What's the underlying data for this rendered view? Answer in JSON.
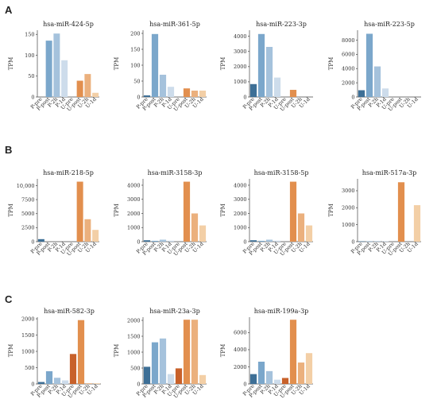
{
  "panels": [
    {
      "letter": "A"
    },
    {
      "letter": "B"
    },
    {
      "letter": "C"
    }
  ],
  "colors": {
    "P-pre": "#3d6f96",
    "P-post": "#7ba7cb",
    "P-2h": "#a5c2dc",
    "P-1d": "#cddceb",
    "U-pre": "#c8612a",
    "U-post": "#e28f4e",
    "U-2h": "#ebb07d",
    "U-1d": "#f3cfa6"
  },
  "chart_data": [
    {
      "type": "bar",
      "title": "hsa-miR-424-5p",
      "ylabel": "TPM",
      "categories": [
        "P-pre",
        "P-post",
        "P-2h",
        "P-1d",
        "U-pre",
        "U-post",
        "U-2h",
        "U-1d"
      ],
      "values": [
        0,
        135,
        152,
        88,
        0,
        39,
        55,
        10
      ],
      "ylim": [
        0,
        160
      ],
      "yticks": [
        0,
        50,
        100,
        150
      ],
      "ytick_labels": [
        "0",
        "50",
        "100",
        "150"
      ]
    },
    {
      "type": "bar",
      "title": "hsa-miR-361-5p",
      "ylabel": "TPM",
      "categories": [
        "P-pre",
        "P-post",
        "P-2h",
        "P-1d",
        "U-pre",
        "U-post",
        "U-2h",
        "U-1d"
      ],
      "values": [
        5,
        198,
        70,
        32,
        0,
        27,
        20,
        20
      ],
      "ylim": [
        0,
        210
      ],
      "yticks": [
        0,
        50,
        100,
        150,
        200
      ],
      "ytick_labels": [
        "0",
        "50",
        "100",
        "150",
        "200"
      ]
    },
    {
      "type": "bar",
      "title": "hsa-miR-223-3p",
      "ylabel": "TPM",
      "categories": [
        "P-pre",
        "P-post",
        "P-2h",
        "P-1d",
        "U-pre",
        "U-post",
        "U-2h",
        "U-1d"
      ],
      "values": [
        850,
        4150,
        3300,
        1280,
        0,
        470,
        0,
        0
      ],
      "ylim": [
        0,
        4400
      ],
      "yticks": [
        0,
        1000,
        2000,
        3000,
        4000
      ],
      "ytick_labels": [
        "0",
        "1000",
        "2000",
        "3000",
        "4000"
      ]
    },
    {
      "type": "bar",
      "title": "hsa-miR-223-5p",
      "ylabel": "TPM",
      "categories": [
        "P-pre",
        "P-post",
        "P-2h",
        "P-1d",
        "U-pre",
        "U-post",
        "U-2h",
        "U-1d"
      ],
      "values": [
        950,
        8900,
        4300,
        1200,
        0,
        0,
        0,
        0
      ],
      "ylim": [
        0,
        9400
      ],
      "yticks": [
        0,
        2000,
        4000,
        6000,
        8000
      ],
      "ytick_labels": [
        "0",
        "2000",
        "4000",
        "6000",
        "8000"
      ]
    },
    {
      "type": "bar",
      "title": "hsa-miR-218-5p",
      "ylabel": "TPM",
      "categories": [
        "P-pre",
        "P-post",
        "P-2h",
        "P-1d",
        "U-pre",
        "U-post",
        "U-2h",
        "U-1d"
      ],
      "values": [
        450,
        0,
        0,
        0,
        0,
        10700,
        4000,
        2100
      ],
      "ylim": [
        0,
        11200
      ],
      "yticks": [
        0,
        2500,
        5000,
        7500,
        10000
      ],
      "ytick_labels": [
        "0",
        "2500",
        "5000",
        "7500",
        "10,000"
      ]
    },
    {
      "type": "bar",
      "title": "hsa-miR-3158-3p",
      "ylabel": "TPM",
      "categories": [
        "P-pre",
        "P-post",
        "P-2h",
        "P-1d",
        "U-pre",
        "U-post",
        "U-2h",
        "U-1d"
      ],
      "values": [
        100,
        60,
        140,
        70,
        0,
        4250,
        2000,
        1150
      ],
      "ylim": [
        0,
        4450
      ],
      "yticks": [
        0,
        1000,
        2000,
        3000,
        4000
      ],
      "ytick_labels": [
        "0",
        "1000",
        "2000",
        "3000",
        "4000"
      ]
    },
    {
      "type": "bar",
      "title": "hsa-miR-3158-5p",
      "ylabel": "TPM",
      "categories": [
        "P-pre",
        "P-post",
        "P-2h",
        "P-1d",
        "U-pre",
        "U-post",
        "U-2h",
        "U-1d"
      ],
      "values": [
        100,
        60,
        140,
        70,
        0,
        4250,
        2000,
        1150
      ],
      "ylim": [
        0,
        4450
      ],
      "yticks": [
        0,
        1000,
        2000,
        3000,
        4000
      ],
      "ytick_labels": [
        "0",
        "1000",
        "2000",
        "3000",
        "4000"
      ]
    },
    {
      "type": "bar",
      "title": "hsa-miR-517a-3p",
      "ylabel": "TPM",
      "categories": [
        "P-pre",
        "P-post",
        "P-2h",
        "P-1d",
        "U-pre",
        "U-post",
        "U-2h",
        "U-1d"
      ],
      "values": [
        20,
        20,
        30,
        30,
        0,
        3500,
        0,
        2150
      ],
      "ylim": [
        0,
        3700
      ],
      "yticks": [
        0,
        1000,
        2000,
        3000
      ],
      "ytick_labels": [
        "0",
        "1000",
        "2000",
        "3000"
      ]
    },
    {
      "type": "bar",
      "title": "hsa-miR-582-3p",
      "ylabel": "TPM",
      "categories": [
        "P-pre",
        "P-post",
        "P-2h",
        "P-1d",
        "U-pre",
        "U-post",
        "U-2h",
        "U-1d"
      ],
      "values": [
        60,
        390,
        190,
        110,
        920,
        1960,
        20,
        20
      ],
      "ylim": [
        0,
        2050
      ],
      "yticks": [
        0,
        500,
        1000,
        1500,
        2000
      ],
      "ytick_labels": [
        "0",
        "500",
        "1000",
        "1500",
        "2000"
      ]
    },
    {
      "type": "bar",
      "title": "hsa-miR-23a-3p",
      "ylabel": "TPM",
      "categories": [
        "P-pre",
        "P-post",
        "P-2h",
        "P-1d",
        "U-pre",
        "U-post",
        "U-2h",
        "U-1d"
      ],
      "values": [
        540,
        1310,
        1430,
        310,
        490,
        2020,
        2020,
        280
      ],
      "ylim": [
        0,
        2100
      ],
      "yticks": [
        0,
        500,
        1000,
        1500,
        2000
      ],
      "ytick_labels": [
        "0",
        "500",
        "1000",
        "1500",
        "2000"
      ]
    },
    {
      "type": "bar",
      "title": "hsa-miR-199a-3p",
      "ylabel": "TPM",
      "categories": [
        "P-pre",
        "P-post",
        "P-2h",
        "P-1d",
        "U-pre",
        "U-post",
        "U-2h",
        "U-1d"
      ],
      "values": [
        1150,
        2600,
        1500,
        500,
        700,
        7500,
        2500,
        3600
      ],
      "ylim": [
        0,
        7800
      ],
      "yticks": [
        0,
        2000,
        4000,
        6000
      ],
      "ytick_labels": [
        "0",
        "2000",
        "4000",
        "6000"
      ]
    }
  ]
}
